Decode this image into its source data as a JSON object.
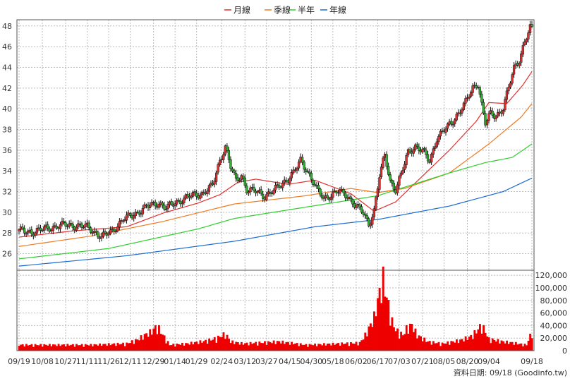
{
  "chart_data": [
    {
      "type": "candlestick",
      "panel": "price",
      "ylim": [
        24.4,
        48.6
      ],
      "grid": true,
      "y_ticks": [
        "26",
        "28",
        "30",
        "32",
        "34",
        "36",
        "38",
        "40",
        "42",
        "44",
        "46",
        "48"
      ],
      "x_ticks": [
        "09/19",
        "10/08",
        "10/27",
        "11/11",
        "11/26",
        "12/11",
        "12/29",
        "01/14",
        "01/29",
        "02/24",
        "03/12",
        "03/27",
        "04/15",
        "04/30",
        "05/18",
        "06/02",
        "06/17",
        "07/03",
        "07/21",
        "08/05",
        "08/20",
        "09/04",
        "09/18"
      ],
      "up_color": "#e03030",
      "down_color": "#2bb52b",
      "close_anchors": [
        [
          0,
          28.2
        ],
        [
          8,
          28.1
        ],
        [
          14,
          28.4
        ],
        [
          26,
          28.8
        ],
        [
          38,
          28.6
        ],
        [
          46,
          27.6
        ],
        [
          52,
          28.2
        ],
        [
          58,
          29.3
        ],
        [
          64,
          29.8
        ],
        [
          72,
          30.6
        ],
        [
          78,
          30.9
        ],
        [
          82,
          30.4
        ],
        [
          86,
          30.8
        ],
        [
          94,
          31.5
        ],
        [
          102,
          31.8
        ],
        [
          108,
          32.6
        ],
        [
          112,
          35.0
        ],
        [
          115,
          36.4
        ],
        [
          118,
          34.4
        ],
        [
          121,
          33.0
        ],
        [
          124,
          33.6
        ],
        [
          127,
          32.2
        ],
        [
          132,
          32.0
        ],
        [
          137,
          31.6
        ],
        [
          142,
          32.1
        ],
        [
          147,
          32.8
        ],
        [
          153,
          33.8
        ],
        [
          157,
          35.0
        ],
        [
          160,
          34.2
        ],
        [
          163,
          33.3
        ],
        [
          166,
          32.2
        ],
        [
          170,
          31.3
        ],
        [
          174,
          31.7
        ],
        [
          178,
          32.0
        ],
        [
          183,
          31.6
        ],
        [
          188,
          30.6
        ],
        [
          192,
          29.9
        ],
        [
          195,
          28.8
        ],
        [
          198,
          30.2
        ],
        [
          201,
          33.5
        ],
        [
          204,
          35.5
        ],
        [
          207,
          33.0
        ],
        [
          210,
          32.2
        ],
        [
          213,
          33.6
        ],
        [
          217,
          35.8
        ],
        [
          221,
          36.4
        ],
        [
          225,
          35.9
        ],
        [
          229,
          34.9
        ],
        [
          233,
          37.2
        ],
        [
          237,
          37.9
        ],
        [
          241,
          38.6
        ],
        [
          245,
          39.6
        ],
        [
          249,
          40.6
        ],
        [
          253,
          42.0
        ],
        [
          256,
          42.5
        ],
        [
          258,
          40.4
        ],
        [
          260,
          38.6
        ],
        [
          263,
          39.5
        ],
        [
          266,
          39.3
        ],
        [
          270,
          40.1
        ],
        [
          273,
          42.0
        ],
        [
          276,
          43.9
        ],
        [
          279,
          44.8
        ],
        [
          282,
          46.5
        ],
        [
          285,
          47.8
        ],
        [
          286,
          47.6
        ]
      ],
      "series": [
        {
          "name": "月線",
          "color": "#e03030",
          "anchors": [
            [
              0,
              27.6
            ],
            [
              30,
              28.2
            ],
            [
              60,
              28.6
            ],
            [
              80,
              29.9
            ],
            [
              100,
              30.9
            ],
            [
              112,
              31.7
            ],
            [
              122,
              32.9
            ],
            [
              132,
              33.2
            ],
            [
              150,
              32.7
            ],
            [
              165,
              33.1
            ],
            [
              185,
              31.8
            ],
            [
              198,
              30.1
            ],
            [
              210,
              31.0
            ],
            [
              225,
              33.5
            ],
            [
              240,
              36.0
            ],
            [
              255,
              38.8
            ],
            [
              262,
              40.6
            ],
            [
              272,
              40.5
            ],
            [
              281,
              42.3
            ],
            [
              286,
              43.6
            ]
          ]
        },
        {
          "name": "季線",
          "color": "#f07a20",
          "anchors": [
            [
              0,
              26.7
            ],
            [
              40,
              27.7
            ],
            [
              80,
              29.1
            ],
            [
              120,
              30.8
            ],
            [
              160,
              31.6
            ],
            [
              185,
              32.3
            ],
            [
              200,
              31.9
            ],
            [
              215,
              32.3
            ],
            [
              240,
              33.8
            ],
            [
              262,
              36.6
            ],
            [
              280,
              39.2
            ],
            [
              286,
              40.5
            ]
          ]
        },
        {
          "name": "半年",
          "color": "#2ccf2c",
          "anchors": [
            [
              0,
              25.5
            ],
            [
              50,
              26.5
            ],
            [
              100,
              28.4
            ],
            [
              120,
              29.4
            ],
            [
              160,
              30.5
            ],
            [
              200,
              31.6
            ],
            [
              220,
              32.7
            ],
            [
              240,
              33.8
            ],
            [
              260,
              34.8
            ],
            [
              275,
              35.3
            ],
            [
              286,
              36.6
            ]
          ]
        },
        {
          "name": "年線",
          "color": "#1a6bd4",
          "anchors": [
            [
              0,
              24.8
            ],
            [
              60,
              25.8
            ],
            [
              120,
              27.2
            ],
            [
              165,
              28.6
            ],
            [
              200,
              29.3
            ],
            [
              240,
              30.6
            ],
            [
              270,
              32.0
            ],
            [
              286,
              33.3
            ]
          ]
        }
      ]
    },
    {
      "type": "bar",
      "panel": "volume",
      "ylim": [
        0,
        128000
      ],
      "grid": true,
      "bar_color": "#ee0000",
      "y_ticks": [
        "0",
        "20,000",
        "40,000",
        "60,000",
        "80,000",
        "100,000",
        "120,000"
      ],
      "volume_anchors": [
        [
          0,
          9000
        ],
        [
          40,
          9000
        ],
        [
          60,
          11000
        ],
        [
          66,
          17000
        ],
        [
          70,
          24000
        ],
        [
          74,
          30000
        ],
        [
          76,
          36000
        ],
        [
          78,
          34000
        ],
        [
          80,
          25000
        ],
        [
          84,
          9000
        ],
        [
          94,
          11000
        ],
        [
          104,
          15000
        ],
        [
          110,
          19000
        ],
        [
          115,
          26000
        ],
        [
          118,
          14000
        ],
        [
          125,
          11000
        ],
        [
          145,
          14000
        ],
        [
          160,
          9000
        ],
        [
          180,
          11000
        ],
        [
          190,
          12000
        ],
        [
          193,
          24000
        ],
        [
          196,
          40000
        ],
        [
          198,
          52000
        ],
        [
          200,
          78000
        ],
        [
          202,
          100000
        ],
        [
          203,
          112000
        ],
        [
          204,
          95000
        ],
        [
          206,
          70000
        ],
        [
          208,
          45000
        ],
        [
          210,
          32000
        ],
        [
          214,
          24000
        ],
        [
          216,
          34000
        ],
        [
          219,
          40000
        ],
        [
          222,
          24000
        ],
        [
          228,
          14000
        ],
        [
          236,
          11000
        ],
        [
          246,
          16000
        ],
        [
          252,
          22000
        ],
        [
          255,
          30000
        ],
        [
          258,
          40000
        ],
        [
          262,
          18000
        ],
        [
          270,
          14000
        ],
        [
          276,
          12000
        ],
        [
          280,
          10000
        ],
        [
          283,
          9000
        ],
        [
          286,
          30000
        ]
      ]
    }
  ],
  "legend": {
    "items": [
      {
        "label": "月線",
        "color": "#e03030"
      },
      {
        "label": "季線",
        "color": "#f07a20"
      },
      {
        "label": "半年",
        "color": "#2ccf2c"
      },
      {
        "label": "年線",
        "color": "#1a6bd4"
      }
    ]
  },
  "source": {
    "text": "資料日期: 09/18 (Goodinfo.tw)"
  }
}
